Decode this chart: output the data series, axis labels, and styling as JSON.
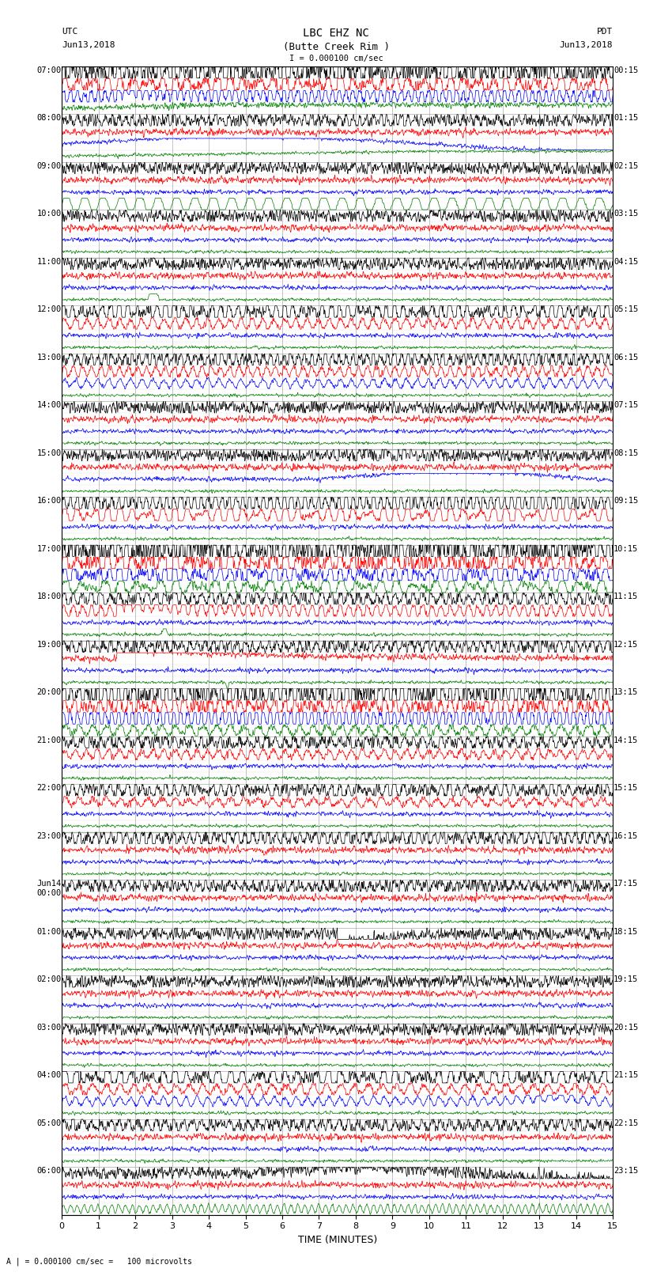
{
  "title_line1": "LBC EHZ NC",
  "title_line2": "(Butte Creek Rim )",
  "scale_label": "I = 0.000100 cm/sec",
  "utc_label": "UTC",
  "utc_date": "Jun13,2018",
  "pdt_label": "PDT",
  "pdt_date": "Jun13,2018",
  "bottom_label": "A | = 0.000100 cm/sec =   100 microvolts",
  "xlabel": "TIME (MINUTES)",
  "bg_color": "#ffffff",
  "trace_colors": [
    "black",
    "red",
    "blue",
    "green"
  ],
  "grid_color": "#888888",
  "utc_times_major": [
    "07:00",
    "08:00",
    "09:00",
    "10:00",
    "11:00",
    "12:00",
    "13:00",
    "14:00",
    "15:00",
    "16:00",
    "17:00",
    "18:00",
    "19:00",
    "20:00",
    "21:00",
    "22:00",
    "23:00",
    "Jun14\n00:00",
    "01:00",
    "02:00",
    "03:00",
    "04:00",
    "05:00",
    "06:00"
  ],
  "pdt_times_major": [
    "00:15",
    "01:15",
    "02:15",
    "03:15",
    "04:15",
    "05:15",
    "06:15",
    "07:15",
    "08:15",
    "09:15",
    "10:15",
    "11:15",
    "12:15",
    "13:15",
    "14:15",
    "15:15",
    "16:15",
    "17:15",
    "18:15",
    "19:15",
    "20:15",
    "21:15",
    "22:15",
    "23:15"
  ],
  "n_rows": 96,
  "traces_per_row": 1,
  "rows_per_hour": 4,
  "x_min": 0,
  "x_max": 15,
  "x_ticks": [
    0,
    1,
    2,
    3,
    4,
    5,
    6,
    7,
    8,
    9,
    10,
    11,
    12,
    13,
    14,
    15
  ],
  "figsize": [
    8.5,
    16.13
  ],
  "dpi": 100
}
